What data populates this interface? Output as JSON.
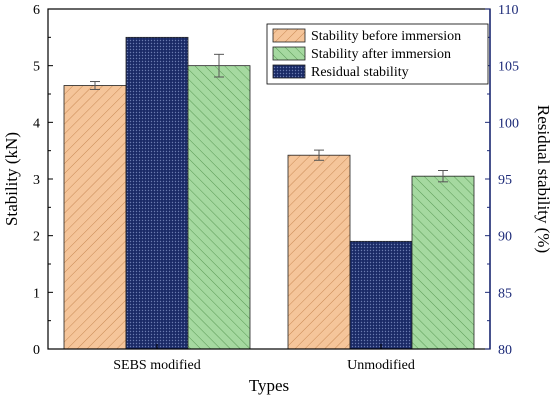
{
  "chart_data": {
    "type": "bar",
    "title": "",
    "xlabel": "Types",
    "ylabel": "Stability (kN)",
    "y2label": "Residual stability (%)",
    "categories": [
      "SEBS modified",
      "Unmodified"
    ],
    "ylim": [
      0,
      6
    ],
    "y2lim": [
      80,
      110
    ],
    "yticks": [
      "0",
      "1",
      "2",
      "3",
      "4",
      "5",
      "6"
    ],
    "y2ticks": [
      "80",
      "85",
      "90",
      "95",
      "100",
      "105",
      "110"
    ],
    "legend_position": "top-right",
    "series": [
      {
        "name": "Stability before immersion",
        "axis": "left",
        "values": [
          4.65,
          3.42
        ],
        "errors": [
          0.07,
          0.09
        ],
        "fill": "#f5c59a",
        "hatch": "#c98a55"
      },
      {
        "name": "Residual stability",
        "axis": "right",
        "values": [
          107.5,
          89.5
        ],
        "errors": [
          0,
          0
        ],
        "fill": "#1a2a66",
        "hatch": "#6a7bb0"
      },
      {
        "name": "Stability after immersion",
        "axis": "left",
        "values": [
          5.0,
          3.05
        ],
        "errors": [
          0.2,
          0.1
        ],
        "fill": "#a5d9a0",
        "hatch": "#5a9a55"
      }
    ],
    "legend_order": [
      0,
      2,
      1
    ],
    "colors": {
      "right_axis": "#1c2a78",
      "axis": "#000000"
    }
  }
}
